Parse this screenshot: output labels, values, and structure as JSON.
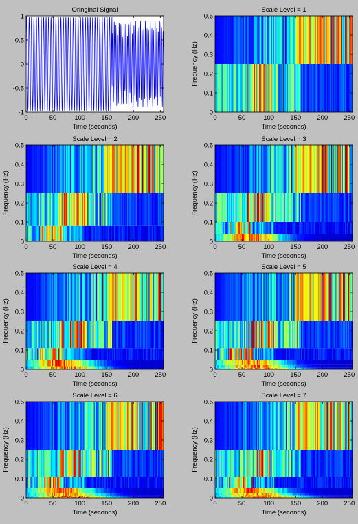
{
  "figure": {
    "background": "#c0c0c0"
  },
  "chart_data": [
    {
      "type": "line",
      "title": "Oringinal Signal",
      "xlabel": "Time (seconds)",
      "ylabel": "",
      "xlim": [
        0,
        256
      ],
      "ylim": [
        -1,
        1
      ],
      "xticks": [
        "0",
        "50",
        "100",
        "150",
        "200",
        "250"
      ],
      "yticks": [
        "-1",
        "-0.5",
        "0",
        "0.5",
        "1"
      ],
      "series": [
        {
          "color": "#0000ff",
          "description": "oscillating signal with amplitude near 1, higher frequency after t=160"
        }
      ]
    },
    {
      "type": "heatmap",
      "title": "Scale Level = 1",
      "xlabel": "Time (seconds)",
      "ylabel": "Frequency (Hz)",
      "xlim": [
        0,
        256
      ],
      "ylim": [
        0,
        0.5
      ],
      "xticks": [
        "0",
        "50",
        "100",
        "150",
        "200",
        "250"
      ],
      "yticks": [
        "0",
        "0.1",
        "0.2",
        "0.3",
        "0.4",
        "0.5"
      ],
      "bands": [
        [
          0,
          0.25
        ],
        [
          0.25,
          0.5
        ]
      ],
      "colormap": "jet"
    },
    {
      "type": "heatmap",
      "title": "Scale Level = 2",
      "xlabel": "Time (seconds)",
      "ylabel": "Frequency (Hz)",
      "xlim": [
        0,
        256
      ],
      "ylim": [
        0,
        0.5
      ],
      "xticks": [
        "0",
        "50",
        "100",
        "150",
        "200",
        "250"
      ],
      "yticks": [
        "0",
        "0.1",
        "0.2",
        "0.3",
        "0.4",
        "0.5"
      ],
      "bands": [
        [
          0,
          0.083
        ],
        [
          0.083,
          0.25
        ],
        [
          0.25,
          0.5
        ]
      ],
      "colormap": "jet"
    },
    {
      "type": "heatmap",
      "title": "Scale Level = 3",
      "xlabel": "Time (seconds)",
      "ylabel": "Frequency (Hz)",
      "xlim": [
        0,
        256
      ],
      "ylim": [
        0,
        0.5
      ],
      "xticks": [
        "0",
        "50",
        "100",
        "150",
        "200",
        "250"
      ],
      "yticks": [
        "0",
        "0.1",
        "0.2",
        "0.3",
        "0.4",
        "0.5"
      ],
      "bands": [
        [
          0,
          0.036
        ],
        [
          0.036,
          0.1
        ],
        [
          0.1,
          0.25
        ],
        [
          0.25,
          0.5
        ]
      ],
      "colormap": "jet"
    },
    {
      "type": "heatmap",
      "title": "Scale Level = 4",
      "xlabel": "Time (seconds)",
      "ylabel": "Frequency (Hz)",
      "xlim": [
        0,
        256
      ],
      "ylim": [
        0,
        0.5
      ],
      "xticks": [
        "0",
        "50",
        "100",
        "150",
        "200",
        "250"
      ],
      "yticks": [
        "0",
        "0.1",
        "0.2",
        "0.3",
        "0.4",
        "0.5"
      ],
      "bands": [
        [
          0,
          0.016
        ],
        [
          0.016,
          0.05
        ],
        [
          0.05,
          0.11
        ],
        [
          0.11,
          0.25
        ],
        [
          0.25,
          0.5
        ]
      ],
      "colormap": "jet"
    },
    {
      "type": "heatmap",
      "title": "Scale Level = 5",
      "xlabel": "Time (seconds)",
      "ylabel": "Frequency (Hz)",
      "xlim": [
        0,
        256
      ],
      "ylim": [
        0,
        0.5
      ],
      "xticks": [
        "0",
        "50",
        "100",
        "150",
        "200",
        "250"
      ],
      "yticks": [
        "0",
        "0.1",
        "0.2",
        "0.3",
        "0.4",
        "0.5"
      ],
      "bands": [
        [
          0,
          0.008
        ],
        [
          0.008,
          0.022
        ],
        [
          0.022,
          0.05
        ],
        [
          0.05,
          0.11
        ],
        [
          0.11,
          0.25
        ],
        [
          0.25,
          0.5
        ]
      ],
      "colormap": "jet"
    },
    {
      "type": "heatmap",
      "title": "Scale Level = 6",
      "xlabel": "Time (seconds)",
      "ylabel": "Frequency (Hz)",
      "xlim": [
        0,
        256
      ],
      "ylim": [
        0,
        0.5
      ],
      "xticks": [
        "0",
        "50",
        "100",
        "150",
        "200",
        "250"
      ],
      "yticks": [
        "0",
        "0.1",
        "0.2",
        "0.3",
        "0.4",
        "0.5"
      ],
      "bands": [
        [
          0,
          0.004
        ],
        [
          0.004,
          0.011
        ],
        [
          0.011,
          0.025
        ],
        [
          0.025,
          0.05
        ],
        [
          0.05,
          0.11
        ],
        [
          0.11,
          0.25
        ],
        [
          0.25,
          0.5
        ]
      ],
      "colormap": "jet"
    },
    {
      "type": "heatmap",
      "title": "Scale Level = 7",
      "xlabel": "Time (seconds)",
      "ylabel": "Frequency (Hz)",
      "xlim": [
        0,
        256
      ],
      "ylim": [
        0,
        0.5
      ],
      "xticks": [
        "0",
        "50",
        "100",
        "150",
        "200",
        "250"
      ],
      "yticks": [
        "0",
        "0.1",
        "0.2",
        "0.3",
        "0.4",
        "0.5"
      ],
      "bands": [
        [
          0,
          0.002
        ],
        [
          0.002,
          0.006
        ],
        [
          0.006,
          0.013
        ],
        [
          0.013,
          0.025
        ],
        [
          0.025,
          0.05
        ],
        [
          0.05,
          0.11
        ],
        [
          0.11,
          0.25
        ],
        [
          0.25,
          0.5
        ]
      ],
      "colormap": "jet"
    }
  ]
}
